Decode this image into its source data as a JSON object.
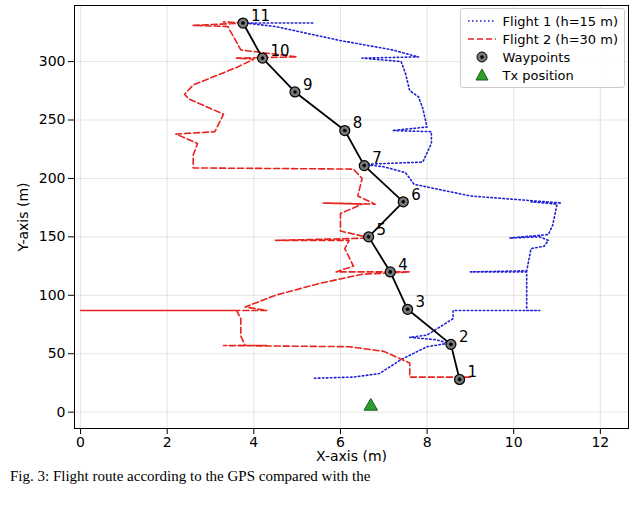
{
  "chart_data": {
    "type": "line",
    "caption": "Fig. 3: Flight route according to the GPS compared with the",
    "xlabel": "X-axis (m)",
    "ylabel": "Y-axis (m)",
    "xlim": [
      -0.14,
      12.65
    ],
    "ylim": [
      -14,
      348
    ],
    "xticks": [
      0,
      2,
      4,
      6,
      8,
      10,
      12
    ],
    "yticks": [
      0,
      50,
      100,
      150,
      200,
      250,
      300
    ],
    "grid": true,
    "legend": "upper right",
    "series": [
      {
        "name": "Flight 1 (h=15 m)",
        "color": "#1f1fd6",
        "type": "line",
        "line_style": "dotted",
        "x": [
          5.4,
          6.3,
          6.9,
          7.4,
          8.0,
          8.5,
          8.2,
          7.6,
          8.0,
          8.6,
          8.6,
          10.6,
          10.3,
          10.3,
          9.0,
          10.3,
          10.4,
          10.7,
          10.8,
          10.6,
          9.9,
          10.8,
          10.9,
          11.0,
          10.4,
          11.1,
          9.0,
          7.7,
          7.5,
          7.0,
          6.5,
          7.9,
          8.1,
          8.1,
          7.2,
          8.0,
          7.9,
          7.8,
          7.6,
          7.5,
          7.4,
          6.5,
          7.8,
          7.2,
          6.0,
          4.5,
          3.8,
          5.4
        ],
        "y": [
          29,
          30,
          33,
          45,
          56,
          59,
          62,
          64,
          66,
          80,
          87,
          87,
          87,
          120,
          120,
          121,
          140,
          142,
          147,
          150,
          149,
          152,
          160,
          178,
          180,
          179,
          185,
          195,
          205,
          210,
          212,
          214,
          230,
          240,
          241,
          244,
          260,
          270,
          275,
          290,
          300,
          303,
          304,
          310,
          318,
          330,
          333,
          333
        ]
      },
      {
        "name": "Flight 2 (h=30 m)",
        "color": "#e8231f",
        "type": "line",
        "line_style": "dashed",
        "x": [
          9.0,
          7.6,
          7.6,
          7.0,
          6.2,
          3.3,
          4.3,
          3.8,
          3.7,
          3.7,
          3.6,
          0.0,
          4.3,
          3.8,
          4.5,
          5.5,
          6.5,
          7.6,
          5.9,
          6.3,
          6.1,
          6.2,
          4.5,
          6.7,
          6.0,
          6.0,
          6.5,
          5.6,
          6.8,
          6.4,
          6.5,
          6.3,
          2.6,
          2.6,
          2.7,
          2.2,
          3.1,
          3.3,
          2.5,
          2.4,
          2.6,
          3.6,
          4.0,
          3.6,
          5.0,
          3.7,
          3.4,
          2.6,
          3.8,
          3.3
        ],
        "y": [
          30,
          30,
          42,
          52,
          56,
          57,
          57,
          57,
          65,
          80,
          87,
          87,
          87,
          90,
          100,
          110,
          118,
          120,
          120,
          125,
          140,
          147,
          147,
          149,
          155,
          170,
          178,
          179,
          178,
          185,
          200,
          208,
          209,
          220,
          230,
          238,
          240,
          255,
          268,
          272,
          280,
          295,
          302,
          303,
          304,
          310,
          330,
          331,
          333,
          334
        ]
      },
      {
        "name": "Waypoints",
        "color": "#000000",
        "type": "line",
        "line_style": "solid",
        "marker": "circle",
        "x": [
          8.75,
          8.55,
          7.55,
          7.15,
          6.65,
          7.45,
          6.55,
          6.1,
          4.95,
          4.2,
          3.75
        ],
        "y": [
          28,
          58,
          88,
          120,
          150,
          180,
          211,
          241,
          274,
          303,
          333
        ],
        "labels": [
          "1",
          "2",
          "3",
          "4",
          "5",
          "6",
          "7",
          "8",
          "9",
          "10",
          "11"
        ]
      },
      {
        "name": "Tx position",
        "color": "#2ca02c",
        "type": "scatter",
        "marker": "triangle",
        "x": [
          6.7
        ],
        "y": [
          5
        ]
      }
    ]
  }
}
